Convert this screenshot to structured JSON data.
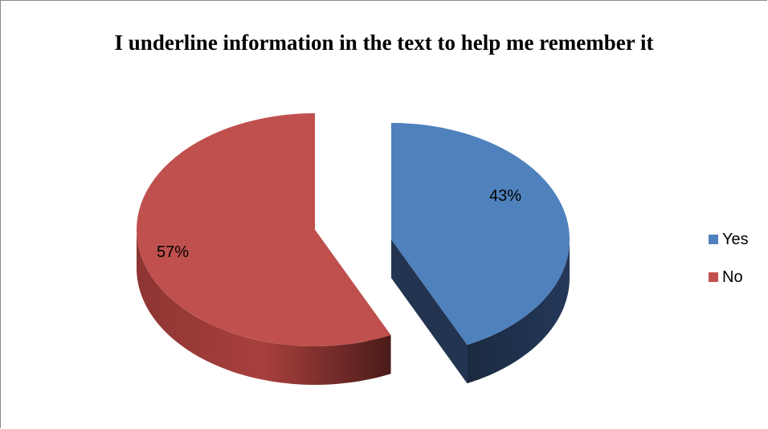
{
  "chart_data": {
    "type": "pie",
    "title": "I underline information in the text to help me remember it",
    "categories": [
      "Yes",
      "No"
    ],
    "values": [
      43,
      57
    ],
    "labels": [
      "43%",
      "57%"
    ],
    "colors": [
      "#4F81BD",
      "#C0504D"
    ],
    "legend_position": "right",
    "style": "3d-exploded"
  }
}
